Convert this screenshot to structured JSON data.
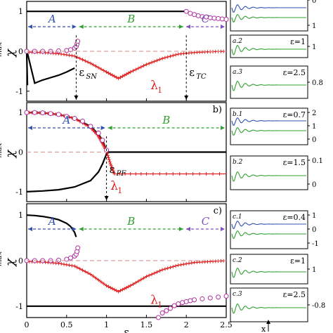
{
  "chart_data": {
    "type": "line",
    "xlim": [
      0,
      2.5
    ],
    "x_ticks": [
      "0",
      "0.5",
      "1",
      "1.5",
      "2",
      "2.5"
    ],
    "x_axis_label": "ε",
    "y_axis_label": "χ",
    "y_axis_label_sup": "max",
    "lambda_label": "λ",
    "lambda_sub": "1",
    "eps": "ε",
    "colors": {
      "black": "#000000",
      "lambda": "#e02020",
      "circle": "#b030a0",
      "dashed": "#d8a0a0",
      "region_A": "#3050b0",
      "region_B": "#30a030",
      "region_C": "#8050c0"
    },
    "panels": [
      {
        "id": "a",
        "tag": "",
        "ylim": [
          -1.25,
          1.25
        ],
        "y_ticks": [
          "1",
          "0",
          "-1"
        ],
        "regions": [
          {
            "name": "A",
            "x": [
              0,
              0.64
            ],
            "color": "#3050b0"
          },
          {
            "name": "B",
            "x": [
              0.64,
              1.98
            ],
            "color": "#30a030"
          },
          {
            "name": "C",
            "x": [
              1.98,
              2.5
            ],
            "color": "#8050c0"
          }
        ],
        "marks": [
          {
            "label": "SN",
            "x": 0.62,
            "y": -0.55
          },
          {
            "label": "TC",
            "x": 2.0,
            "y": -0.55
          }
        ],
        "series": [
          {
            "style": "black",
            "x": [
              0,
              2.0
            ],
            "y": [
              1,
              1
            ]
          },
          {
            "style": "black",
            "x": [
              0.01,
              0.1,
              0.2,
              0.3,
              0.4,
              0.5,
              0.6
            ],
            "y": [
              -0.05,
              -0.8,
              -0.72,
              -0.66,
              -0.6,
              -0.52,
              -0.42
            ]
          },
          {
            "style": "black",
            "x": [
              0,
              0.01
            ],
            "y": [
              -0.05,
              -0.85
            ]
          },
          {
            "style": "lambda",
            "x": [
              0,
              0.2,
              0.4,
              0.6,
              0.8,
              1.0,
              1.15,
              1.3,
              1.5,
              1.7,
              1.9,
              2.1,
              2.3,
              2.5
            ],
            "y": [
              -0.02,
              -0.03,
              -0.06,
              -0.12,
              -0.3,
              -0.52,
              -0.68,
              -0.52,
              -0.33,
              -0.18,
              -0.07,
              -0.03,
              -0.01,
              0
            ]
          },
          {
            "style": "circle",
            "x": [
              0,
              0.1,
              0.2,
              0.3,
              0.4,
              0.5,
              0.55,
              0.6,
              0.62,
              0.63,
              0.64
            ],
            "y": [
              0,
              0,
              0,
              0,
              0.01,
              0.02,
              0.04,
              0.08,
              0.12,
              0.18,
              0.25
            ]
          },
          {
            "style": "circle",
            "x": [
              2.0,
              2.05,
              2.1,
              2.15,
              2.2,
              2.25,
              2.3,
              2.35,
              2.4,
              2.45,
              2.5
            ],
            "y": [
              1.0,
              0.95,
              0.92,
              0.89,
              0.87,
              0.86,
              0.84,
              0.83,
              0.82,
              0.81,
              0.8
            ]
          },
          {
            "style": "dashed",
            "x": [
              0,
              2.5
            ],
            "y": [
              0,
              0
            ]
          }
        ]
      },
      {
        "id": "b",
        "tag": "b)",
        "ylim": [
          -1.25,
          1.25
        ],
        "y_ticks": [
          "1",
          "0",
          "-1"
        ],
        "regions": [
          {
            "name": "A",
            "x": [
              0,
              1.0
            ],
            "color": "#3050b0"
          },
          {
            "name": "B",
            "x": [
              1.0,
              2.5
            ],
            "color": "#30a030"
          }
        ],
        "marks": [
          {
            "label": "PF",
            "x": 1.0,
            "y": -0.45
          }
        ],
        "series": [
          {
            "style": "black",
            "x": [
              0,
              0.2,
              0.4,
              0.6,
              0.8,
              0.9,
              0.95,
              1.0
            ],
            "y": [
              1.0,
              0.99,
              0.95,
              0.85,
              0.65,
              0.45,
              0.3,
              0.05
            ]
          },
          {
            "style": "black",
            "x": [
              0,
              0.2,
              0.4,
              0.6,
              0.8,
              0.9,
              0.95,
              1.0
            ],
            "y": [
              -1.0,
              -0.98,
              -0.95,
              -0.88,
              -0.72,
              -0.5,
              -0.3,
              -0.05
            ]
          },
          {
            "style": "black",
            "x": [
              1.0,
              2.5
            ],
            "y": [
              0,
              0
            ]
          },
          {
            "style": "lambda",
            "x": [
              0,
              0.2,
              0.4,
              0.6,
              0.8,
              0.9,
              0.95,
              1.0,
              1.05,
              1.1,
              1.5,
              2.0,
              2.5
            ],
            "y": [
              1.0,
              0.99,
              0.95,
              0.85,
              0.62,
              0.4,
              0.22,
              0.02,
              -0.3,
              -0.55,
              -0.55,
              -0.55,
              -0.55
            ]
          },
          {
            "style": "circle",
            "x": [
              0,
              0.1,
              0.2,
              0.3,
              0.4,
              0.5,
              0.6,
              0.7,
              0.8,
              0.9,
              0.95,
              1.0
            ],
            "y": [
              1.0,
              1.0,
              0.99,
              0.97,
              0.95,
              0.9,
              0.85,
              0.78,
              0.65,
              0.48,
              0.3,
              0.05
            ]
          },
          {
            "style": "dashed",
            "x": [
              0,
              1.0
            ],
            "y": [
              0,
              0
            ]
          }
        ]
      },
      {
        "id": "c",
        "tag": "c)",
        "ylim": [
          -1.25,
          1.25
        ],
        "y_ticks": [
          "1",
          "0",
          "-1"
        ],
        "regions": [
          {
            "name": "A",
            "x": [
              0,
              0.64
            ],
            "color": "#3050b0"
          },
          {
            "name": "B",
            "x": [
              0.64,
              1.98
            ],
            "color": "#30a030"
          },
          {
            "name": "C",
            "x": [
              1.98,
              2.5
            ],
            "color": "#8050c0"
          }
        ],
        "marks": [],
        "series": [
          {
            "style": "black",
            "x": [
              0,
              0.1,
              0.2,
              0.3,
              0.4,
              0.5,
              0.55,
              0.6,
              0.62
            ],
            "y": [
              1.0,
              0.99,
              0.97,
              0.94,
              0.9,
              0.82,
              0.75,
              0.62,
              0.52
            ]
          },
          {
            "style": "black",
            "x": [
              0,
              2.5
            ],
            "y": [
              -1,
              -1
            ]
          },
          {
            "style": "lambda",
            "x": [
              0,
              0.2,
              0.4,
              0.6,
              0.8,
              1.0,
              1.15,
              1.3,
              1.5,
              1.7,
              1.9,
              2.1,
              2.3,
              2.5
            ],
            "y": [
              -0.02,
              -0.03,
              -0.06,
              -0.12,
              -0.3,
              -0.55,
              -0.68,
              -0.55,
              -0.35,
              -0.2,
              -0.1,
              -0.04,
              -0.02,
              0
            ]
          },
          {
            "style": "circle",
            "x": [
              0,
              0.1,
              0.2,
              0.3,
              0.4,
              0.5,
              0.55,
              0.6,
              0.62,
              0.63,
              0.64
            ],
            "y": [
              0,
              0,
              0,
              0,
              0.01,
              0.03,
              0.06,
              0.1,
              0.14,
              0.2,
              0.28
            ]
          },
          {
            "style": "circle",
            "x": [
              1.65,
              1.7,
              1.75,
              1.8,
              1.85,
              1.9,
              1.95,
              2.0,
              2.05,
              2.1,
              2.2,
              2.3,
              2.4,
              2.5
            ],
            "y": [
              -1.25,
              -1.15,
              -1.1,
              -1.05,
              -0.99,
              -0.95,
              -0.92,
              -0.9,
              -0.88,
              -0.86,
              -0.84,
              -0.82,
              -0.8,
              -0.78
            ]
          },
          {
            "style": "dashed",
            "x": [
              0,
              2.5
            ],
            "y": [
              0,
              0
            ]
          }
        ]
      }
    ],
    "insets": [
      {
        "id": "a1",
        "label": "",
        "eps": "",
        "ticks": [
          "0",
          "1"
        ],
        "osc": "dual"
      },
      {
        "id": "a2",
        "label": "a.2",
        "eps": "ε=1",
        "ticks": [
          "1"
        ],
        "osc": "single"
      },
      {
        "id": "a3",
        "label": "a.3",
        "eps": "ε=2.5",
        "ticks": [
          "0.8"
        ],
        "osc": "single"
      },
      {
        "id": "b1",
        "label": "b.1",
        "eps": "ε=0.7",
        "ticks": [
          "2",
          "1",
          "0"
        ],
        "osc": "dual"
      },
      {
        "id": "b2",
        "label": "b.2",
        "eps": "ε=1.5",
        "ticks": [
          "0.1",
          "0"
        ],
        "osc": "single"
      },
      {
        "id": "c1",
        "label": "c.1",
        "eps": "ε=0.4",
        "ticks": [
          "1",
          "0",
          "-1"
        ],
        "osc": "dual"
      },
      {
        "id": "c2",
        "label": "c.2",
        "eps": "ε=1",
        "ticks": [
          "1"
        ],
        "osc": "single"
      },
      {
        "id": "c3",
        "label": "c.3",
        "eps": "ε=2.5",
        "ticks": [
          "-0.8"
        ],
        "osc": "single"
      }
    ],
    "inset_x_label": "x"
  }
}
